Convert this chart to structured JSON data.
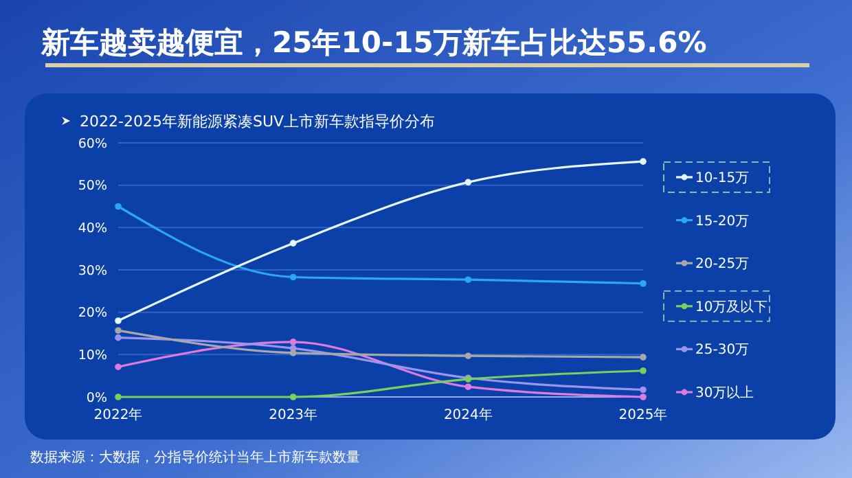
{
  "chart_data": {
    "type": "line",
    "title": "新车越卖越便宜，25年10-15万新车占比达55.6%",
    "subtitle": "2022-2025年新能源紧凑SUV上市新车款指导价分布",
    "annotations": [
      "数据来源：大数据，分指导价统计当年上市新车款数量"
    ],
    "categories": [
      "2022年",
      "2023年",
      "2024年",
      "2025年"
    ],
    "series": [
      {
        "name": "10-15万",
        "color": "#e6f7ff",
        "values": [
          18,
          36.3,
          50.7,
          55.6
        ]
      },
      {
        "name": "15-20万",
        "color": "#2aa8f0",
        "values": [
          45,
          28.3,
          27.7,
          26.8
        ]
      },
      {
        "name": "20-25万",
        "color": "#a8a8a8",
        "values": [
          15.7,
          10.4,
          9.7,
          9.4
        ]
      },
      {
        "name": "10万及以下",
        "color": "#7ccf5a",
        "values": [
          0,
          0,
          4.2,
          6.2
        ]
      },
      {
        "name": "25-30万",
        "color": "#9b95f0",
        "values": [
          14,
          11.5,
          4.5,
          1.7
        ]
      },
      {
        "name": "30万以上",
        "color": "#e07ae0",
        "values": [
          7.1,
          13,
          2.4,
          0
        ]
      }
    ],
    "ylim": [
      0,
      60
    ],
    "yticks": [
      {
        "value": 0,
        "label": "0%"
      },
      {
        "value": 10,
        "label": "10%"
      },
      {
        "value": 20,
        "label": "20%"
      },
      {
        "value": 30,
        "label": "30%"
      },
      {
        "value": 40,
        "label": "40%"
      },
      {
        "value": 50,
        "label": "50%"
      },
      {
        "value": 60,
        "label": "60%"
      }
    ],
    "grid": "y",
    "legend": "right",
    "marker": "circle",
    "line_style": "solid"
  }
}
